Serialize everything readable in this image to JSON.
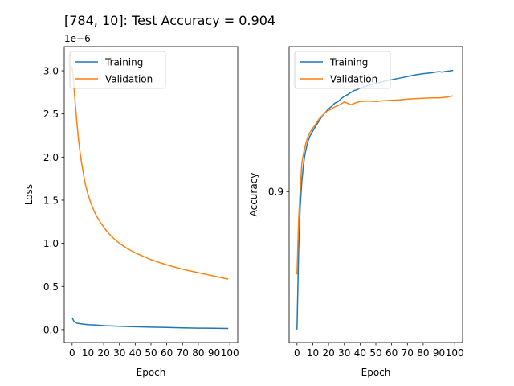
{
  "figure": {
    "suptitle": "[784, 10]: Test Accuracy = 0.904"
  },
  "colors": {
    "training": "#1f77b4",
    "validation": "#ff7f0e",
    "axes": "#000000",
    "background": "#ffffff"
  },
  "chart_data": [
    {
      "type": "line",
      "title": "",
      "xlabel": "Epoch",
      "ylabel": "Loss",
      "y_offset_label": "1e−6",
      "xlim": [
        -5,
        105
      ],
      "ylim": [
        -0.15,
        3.28
      ],
      "y_scale_note": "values in units of 1e-6",
      "xticks": [
        0,
        10,
        20,
        30,
        40,
        50,
        60,
        70,
        80,
        90,
        100
      ],
      "xtick_labels": [
        "0",
        "10",
        "20",
        "30",
        "40",
        "50",
        "60",
        "70",
        "80",
        "90",
        "100"
      ],
      "yticks": [
        0.0,
        0.5,
        1.0,
        1.5,
        2.0,
        2.5,
        3.0
      ],
      "ytick_labels": [
        "0.0",
        "0.5",
        "1.0",
        "1.5",
        "2.0",
        "2.5",
        "3.0"
      ],
      "legend": {
        "position": "upper left",
        "entries": [
          "Training",
          "Validation"
        ]
      },
      "grid": false,
      "series": [
        {
          "name": "Training",
          "color": "#1f77b4",
          "x": [
            0,
            1,
            2,
            3,
            5,
            7,
            10,
            15,
            20,
            25,
            30,
            40,
            50,
            60,
            70,
            80,
            90,
            99
          ],
          "y": [
            0.14,
            0.1,
            0.085,
            0.075,
            0.068,
            0.063,
            0.058,
            0.052,
            0.046,
            0.042,
            0.038,
            0.033,
            0.028,
            0.024,
            0.02,
            0.017,
            0.015,
            0.013
          ]
        },
        {
          "name": "Validation",
          "color": "#ff7f0e",
          "x": [
            0,
            1,
            2,
            3,
            4,
            5,
            6,
            7,
            8,
            9,
            10,
            12,
            14,
            16,
            18,
            20,
            22,
            25,
            28,
            30,
            35,
            40,
            45,
            50,
            55,
            60,
            65,
            70,
            75,
            80,
            85,
            90,
            95,
            99
          ],
          "y": [
            3.05,
            2.85,
            2.62,
            2.4,
            2.21,
            2.06,
            1.93,
            1.82,
            1.72,
            1.64,
            1.57,
            1.46,
            1.37,
            1.3,
            1.24,
            1.19,
            1.14,
            1.08,
            1.03,
            1.0,
            0.94,
            0.89,
            0.85,
            0.81,
            0.78,
            0.75,
            0.725,
            0.7,
            0.68,
            0.66,
            0.64,
            0.62,
            0.6,
            0.585
          ]
        }
      ]
    },
    {
      "type": "line",
      "title": "",
      "xlabel": "Epoch",
      "ylabel": "Accuracy",
      "xlim": [
        -5,
        105
      ],
      "ylim": [
        0.8626,
        0.9359
      ],
      "xticks": [
        0,
        10,
        20,
        30,
        40,
        50,
        60,
        70,
        80,
        90,
        100
      ],
      "xtick_labels": [
        "0",
        "10",
        "20",
        "30",
        "40",
        "50",
        "60",
        "70",
        "80",
        "90",
        "100"
      ],
      "yticks": [
        0.9
      ],
      "ytick_labels": [
        "0.9"
      ],
      "legend": {
        "position": "upper left",
        "entries": [
          "Training",
          "Validation"
        ]
      },
      "grid": false,
      "series": [
        {
          "name": "Training",
          "color": "#1f77b4",
          "x": [
            0,
            1,
            2,
            3,
            4,
            5,
            6,
            7,
            8,
            10,
            12,
            14,
            16,
            18,
            20,
            22,
            24,
            26,
            28,
            30,
            32,
            34,
            36,
            38,
            40,
            45,
            50,
            55,
            60,
            65,
            70,
            75,
            80,
            85,
            88,
            90,
            92,
            95,
            99
          ],
          "y": [
            0.8658,
            0.885,
            0.896,
            0.9022,
            0.9063,
            0.9091,
            0.911,
            0.9125,
            0.9136,
            0.915,
            0.9163,
            0.9175,
            0.9187,
            0.9196,
            0.9205,
            0.9211,
            0.9219,
            0.9223,
            0.923,
            0.9236,
            0.924,
            0.9245,
            0.925,
            0.9252,
            0.9256,
            0.9263,
            0.9268,
            0.9273,
            0.9277,
            0.9281,
            0.9285,
            0.9289,
            0.9292,
            0.9294,
            0.9296,
            0.9297,
            0.9296,
            0.9298,
            0.93
          ]
        },
        {
          "name": "Validation",
          "color": "#ff7f0e",
          "x": [
            0,
            1,
            2,
            3,
            4,
            5,
            6,
            7,
            8,
            10,
            12,
            14,
            16,
            18,
            20,
            22,
            24,
            26,
            28,
            30,
            32,
            34,
            36,
            38,
            40,
            45,
            50,
            55,
            60,
            65,
            70,
            75,
            80,
            85,
            90,
            95,
            99
          ],
          "y": [
            0.8795,
            0.893,
            0.9,
            0.9068,
            0.9092,
            0.911,
            0.9125,
            0.9137,
            0.9145,
            0.9157,
            0.9168,
            0.918,
            0.9188,
            0.9196,
            0.9201,
            0.9205,
            0.921,
            0.9213,
            0.9217,
            0.9222,
            0.9219,
            0.9215,
            0.9218,
            0.9221,
            0.9223,
            0.9224,
            0.9223,
            0.9225,
            0.9226,
            0.9227,
            0.9229,
            0.923,
            0.9231,
            0.9232,
            0.9232,
            0.9234,
            0.9237
          ]
        }
      ]
    }
  ]
}
